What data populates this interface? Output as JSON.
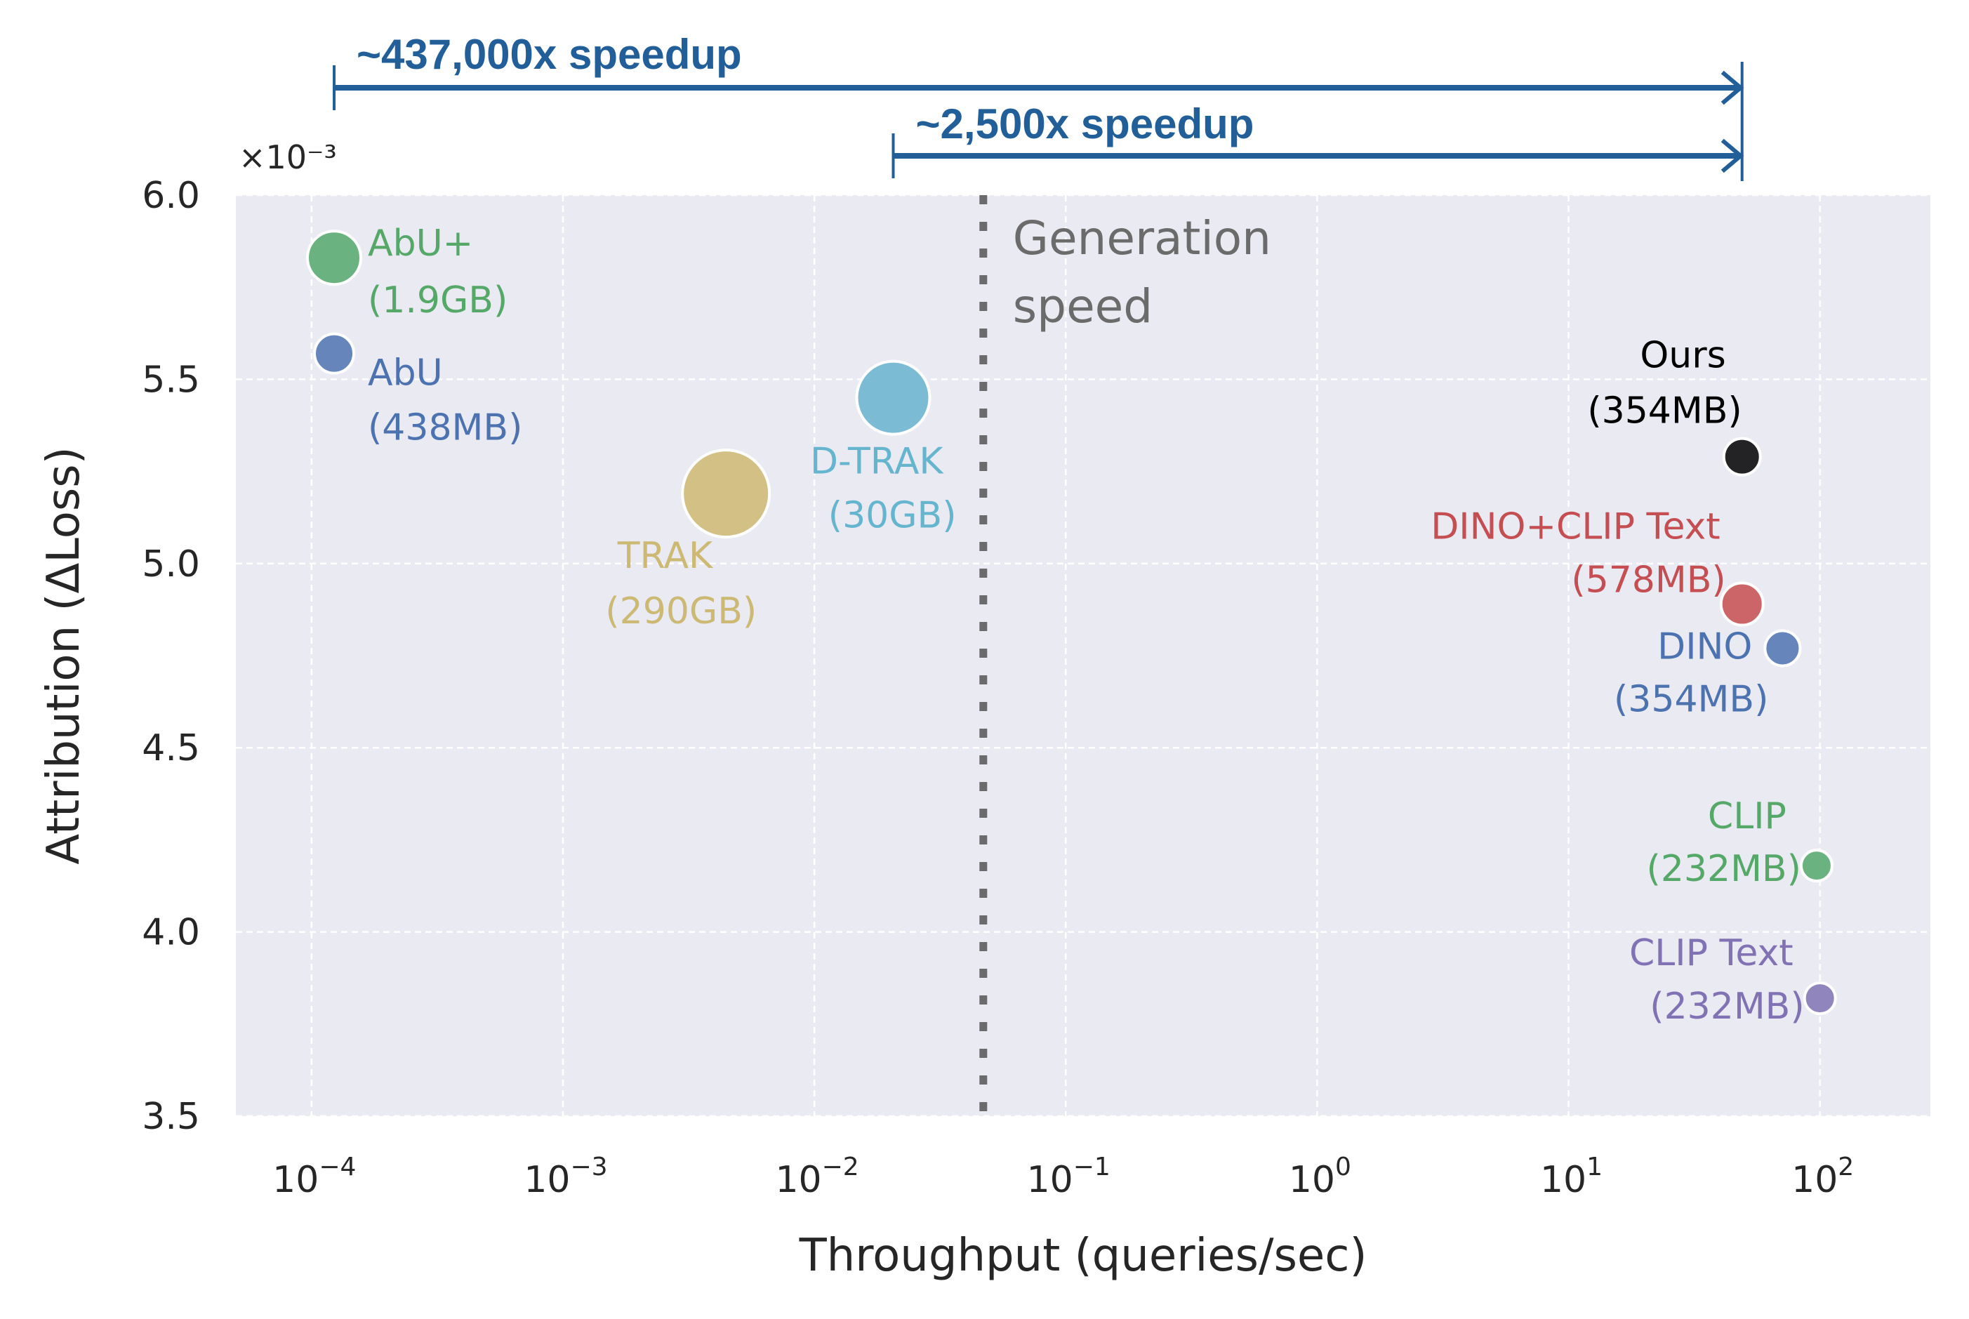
{
  "chart_data": {
    "type": "scatter",
    "title": "",
    "xlabel": "Throughput (queries/sec)",
    "ylabel": "Attribution (ΔLoss)",
    "xscale": "log",
    "xlim": [
      5e-05,
      275
    ],
    "ylim": [
      3.5,
      6.0
    ],
    "y_offset_label": "×10⁻³",
    "grid": true,
    "x_ticks": [
      {
        "value": 0.0001,
        "base": "10",
        "exp": "−4"
      },
      {
        "value": 0.001,
        "base": "10",
        "exp": "−3"
      },
      {
        "value": 0.01,
        "base": "10",
        "exp": "−2"
      },
      {
        "value": 0.1,
        "base": "10",
        "exp": "−1"
      },
      {
        "value": 1,
        "base": "10",
        "exp": "0"
      },
      {
        "value": 10,
        "base": "10",
        "exp": "1"
      },
      {
        "value": 100,
        "base": "10",
        "exp": "2"
      }
    ],
    "y_ticks": [
      "3.5",
      "4.0",
      "4.5",
      "5.0",
      "5.5",
      "6.0"
    ],
    "points": [
      {
        "name": "AbU+",
        "size_label": "(1.9GB)",
        "x": 0.000123,
        "y": 5.83,
        "color": "#55a868",
        "label_pos": "right-top"
      },
      {
        "name": "AbU",
        "size_label": "(438MB)",
        "x": 0.000123,
        "y": 5.57,
        "color": "#4c72b0",
        "label_pos": "right-bottom"
      },
      {
        "name": "TRAK",
        "size_label": "(290GB)",
        "x": 0.00445,
        "y": 5.19,
        "color": "#ccb974",
        "label_pos": "bottom-left"
      },
      {
        "name": "D-TRAK",
        "size_label": "(30GB)",
        "x": 0.0206,
        "y": 5.45,
        "color": "#64b5cd",
        "label_pos": "bottom-left"
      },
      {
        "name": "Ours",
        "size_label": "(354MB)",
        "x": 49,
        "y": 5.29,
        "color": "#000000",
        "label_pos": "top-left"
      },
      {
        "name": "DINO+CLIP Text",
        "size_label": "(578MB)",
        "x": 49,
        "y": 4.89,
        "color": "#c44e52",
        "label_pos": "top-left"
      },
      {
        "name": "DINO",
        "size_label": "(354MB)",
        "x": 71,
        "y": 4.77,
        "color": "#4c72b0",
        "label_pos": "left"
      },
      {
        "name": "CLIP",
        "size_label": "(232MB)",
        "x": 97,
        "y": 4.18,
        "color": "#55a868",
        "label_pos": "left"
      },
      {
        "name": "CLIP Text",
        "size_label": "(232MB)",
        "x": 100,
        "y": 3.82,
        "color": "#8172b3",
        "label_pos": "left"
      }
    ],
    "marker_fill": {
      "AbU+": "#6ab27f",
      "AbU": "#6585bb",
      "TRAK": "#d3c085",
      "D-TRAK": "#7bbcd4",
      "Ours": "#232325",
      "DINO+CLIP Text": "#cc6568",
      "DINO": "#6585bb",
      "CLIP": "#6ab27f",
      "CLIP Text": "#9185bd"
    },
    "annotations": [
      {
        "type": "vline",
        "x": 0.047,
        "style": "dotted",
        "color": "#6b6b6b",
        "text_lines": [
          "Generation",
          "speed"
        ]
      },
      {
        "type": "arrow",
        "from_x": 0.000123,
        "to_x": 49,
        "text": "~437,000x speedup",
        "color": "#225f99"
      },
      {
        "type": "arrow",
        "from_x": 0.0206,
        "to_x": 49,
        "text": "~2,500x speedup",
        "color": "#225f99"
      }
    ],
    "background": "#eaeaf2"
  }
}
